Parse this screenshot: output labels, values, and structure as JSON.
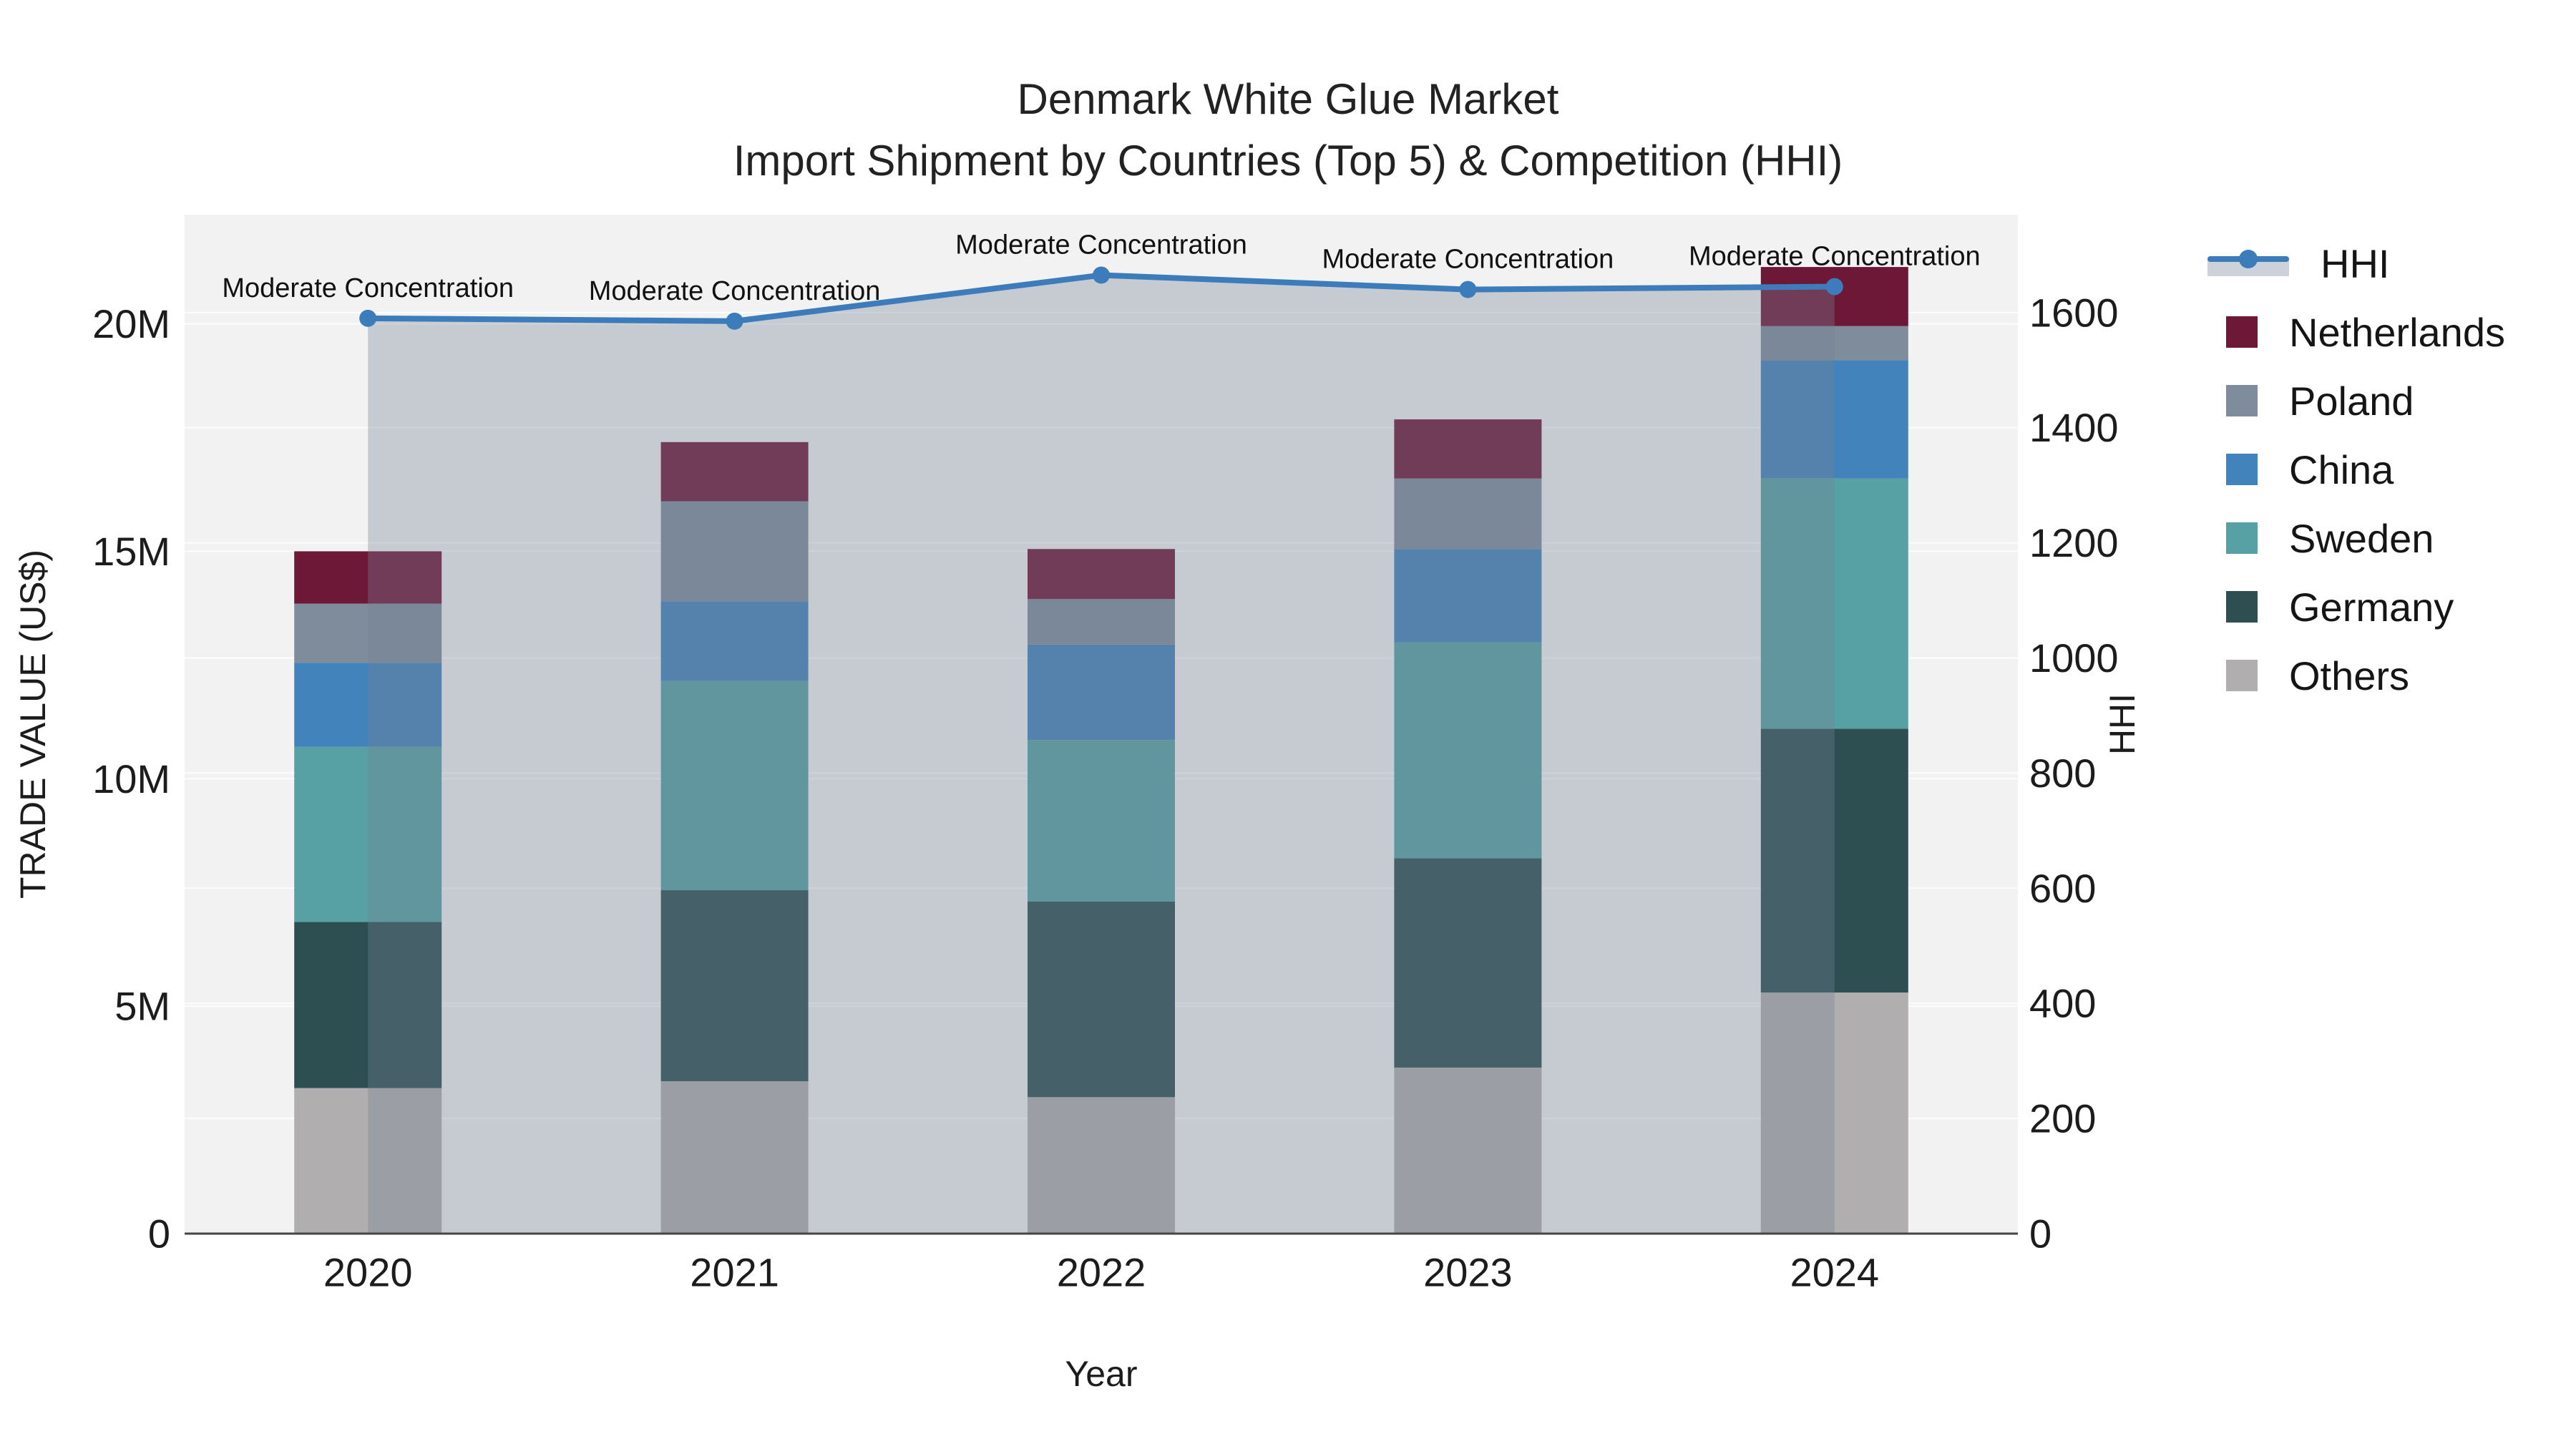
{
  "title": "Denmark White Glue Market",
  "subtitle": "Import Shipment by Countries (Top 5) & Competition (HHI)",
  "x_axis": {
    "title": "Year",
    "categories": [
      "2020",
      "2021",
      "2022",
      "2023",
      "2024"
    ]
  },
  "y_axis": {
    "title": "TRADE VALUE (US$)",
    "tick_labels": [
      "0",
      "5M",
      "10M",
      "15M",
      "20M"
    ],
    "tick_values_millions": [
      0,
      5,
      10,
      15,
      20
    ],
    "range_millions": [
      0,
      22.4
    ]
  },
  "y2_axis": {
    "title": "HHI",
    "tick_labels": [
      "0",
      "200",
      "400",
      "600",
      "800",
      "1000",
      "1200",
      "1400",
      "1600"
    ],
    "tick_values": [
      0,
      200,
      400,
      600,
      800,
      1000,
      1200,
      1400,
      1600
    ],
    "range": [
      0,
      1770
    ]
  },
  "annotation_text": "Moderate Concentration",
  "colors": {
    "hhi_line": "#3d7cba",
    "hhi_fill": "rgba(117,130,150,0.35)",
    "netherlands": "#6e1838",
    "poland": "#7e8c9b",
    "china": "#4383bb",
    "sweden": "#57a1a5",
    "germany": "#2d4f52",
    "others": "#b0aeae",
    "plot_bg": "#f2f2f2",
    "gridline": "#ffffff",
    "axis_line": "#454545",
    "text": "#1c1c1c"
  },
  "legend": [
    {
      "label": "HHI",
      "type": "line",
      "color": "#3d7cba"
    },
    {
      "label": "Netherlands",
      "type": "square",
      "color": "#6e1838"
    },
    {
      "label": "Poland",
      "type": "square",
      "color": "#7e8c9b"
    },
    {
      "label": "China",
      "type": "square",
      "color": "#4383bb"
    },
    {
      "label": "Sweden",
      "type": "square",
      "color": "#57a1a5"
    },
    {
      "label": "Germany",
      "type": "square",
      "color": "#2d4f52"
    },
    {
      "label": "Others",
      "type": "square",
      "color": "#b0aeae"
    }
  ],
  "chart_data": {
    "type": "combo: stacked-bar + line(area) on secondary axis",
    "title": "Denmark White Glue Market — Import Shipment by Countries (Top 5) & Competition (HHI)",
    "xlabel": "Year",
    "ylabel": "TRADE VALUE (US$)",
    "y2label": "HHI",
    "categories": [
      "2020",
      "2021",
      "2022",
      "2023",
      "2024"
    ],
    "bar_value_unit": "millions USD",
    "ylim_millions": [
      0,
      22.4
    ],
    "y2lim": [
      0,
      1770
    ],
    "grid": "horizontal, both axes, faint white",
    "legend_position": "right",
    "series": [
      {
        "name": "Others",
        "color": "#b0aeae",
        "values": [
          3.2,
          3.35,
          3.0,
          3.65,
          5.3
        ]
      },
      {
        "name": "Germany",
        "color": "#2d4f52",
        "values": [
          3.65,
          4.2,
          4.3,
          4.6,
          5.8
        ]
      },
      {
        "name": "Sweden",
        "color": "#57a1a5",
        "values": [
          3.85,
          4.6,
          3.55,
          4.75,
          5.5
        ]
      },
      {
        "name": "China",
        "color": "#4383bb",
        "values": [
          1.85,
          1.75,
          2.1,
          2.05,
          2.6
        ]
      },
      {
        "name": "Poland",
        "color": "#7e8c9b",
        "values": [
          1.3,
          2.2,
          1.0,
          1.55,
          0.75
        ]
      },
      {
        "name": "Netherlands",
        "color": "#6e1838",
        "values": [
          1.15,
          1.3,
          1.1,
          1.3,
          1.3
        ]
      }
    ],
    "stack_totals_millions": [
      15.0,
      17.4,
      15.05,
      17.9,
      21.25
    ],
    "line_series": {
      "name": "HHI",
      "axis": "y2",
      "color": "#3d7cba",
      "fill": "to zero, rgba(117,130,150,0.35)",
      "values": [
        1590,
        1585,
        1665,
        1640,
        1645
      ],
      "point_labels": [
        "Moderate Concentration",
        "Moderate Concentration",
        "Moderate Concentration",
        "Moderate Concentration",
        "Moderate Concentration"
      ]
    }
  }
}
